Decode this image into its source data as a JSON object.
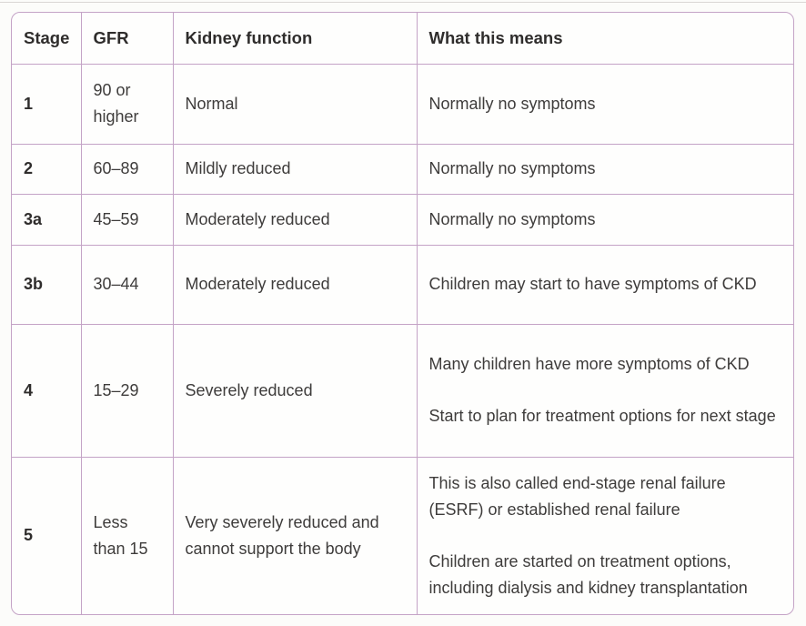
{
  "theme": {
    "page-bg": "#fcfcfa",
    "border-color": "#c4a3c6",
    "text-color": "#3e3c3b",
    "header-color": "#2f2d2c",
    "divider-color": "#d9d6d4"
  },
  "table": {
    "columns": {
      "stage": "Stage",
      "gfr": "GFR",
      "function": "Kidney function",
      "means": "What this means"
    },
    "rows": [
      {
        "stage": "1",
        "gfr": "90 or higher",
        "function": "Normal",
        "means": [
          "Normally no symptoms"
        ]
      },
      {
        "stage": "2",
        "gfr": "60–89",
        "function": "Mildly reduced",
        "means": [
          "Normally no symptoms"
        ]
      },
      {
        "stage": "3a",
        "gfr": "45–59",
        "function": "Moderately reduced",
        "means": [
          "Normally no symptoms"
        ]
      },
      {
        "stage": "3b",
        "gfr": "30–44",
        "function": "Moderately reduced",
        "means": [
          "Children may start to have symptoms of CKD"
        ]
      },
      {
        "stage": "4",
        "gfr": "15–29",
        "function": "Severely reduced",
        "means": [
          "Many children have more symptoms of CKD",
          "Start to plan for treatment options for next stage"
        ]
      },
      {
        "stage": "5",
        "gfr": "Less than 15",
        "function": "Very severely reduced and cannot support the body",
        "means": [
          "This is also called end-stage renal failure (ESRF) or established renal failure",
          "Children are started on treatment options, including dialysis and kidney transplantation"
        ]
      }
    ]
  }
}
